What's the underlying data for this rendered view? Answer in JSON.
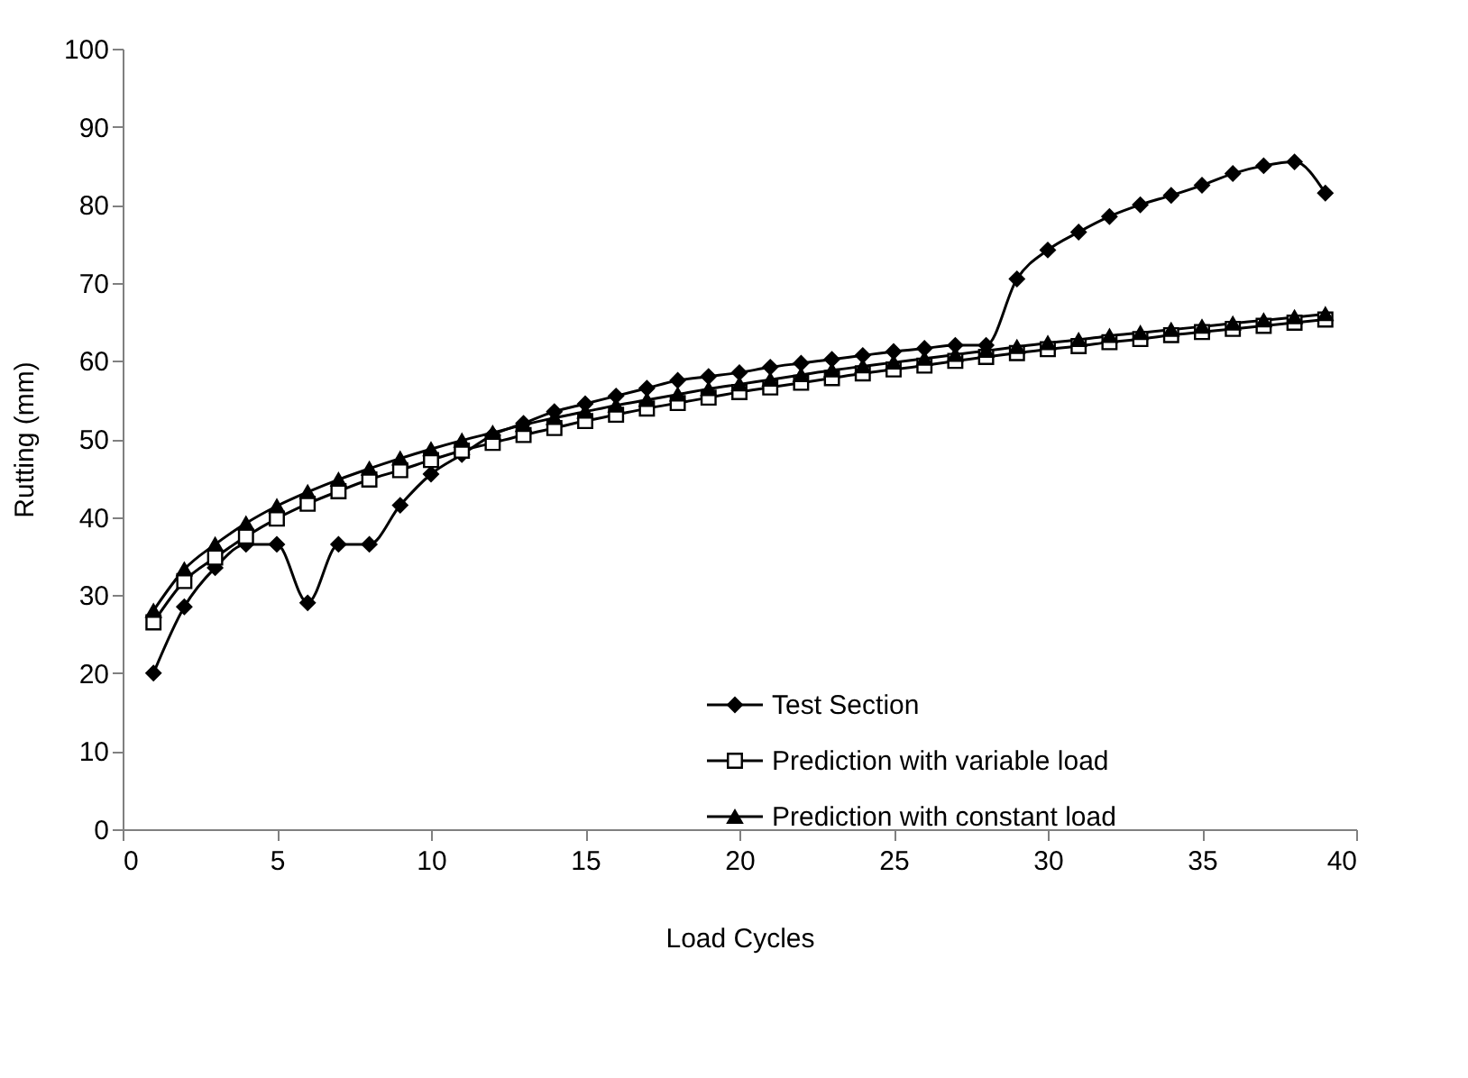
{
  "chart_data": {
    "type": "line",
    "xlabel": "Load Cycles",
    "ylabel": "Rutting (mm)",
    "x": [
      1,
      2,
      3,
      4,
      5,
      6,
      7,
      8,
      9,
      10,
      11,
      12,
      13,
      14,
      15,
      16,
      17,
      18,
      19,
      20,
      21,
      22,
      23,
      24,
      25,
      26,
      27,
      28,
      29,
      30,
      31,
      32,
      33,
      34,
      35,
      36,
      37,
      38,
      39
    ],
    "xlim": [
      0,
      40
    ],
    "xticks": [
      0,
      5,
      10,
      15,
      20,
      25,
      30,
      35,
      40
    ],
    "ylim": [
      0,
      100
    ],
    "yticks": [
      0,
      10,
      20,
      30,
      40,
      50,
      60,
      70,
      80,
      90,
      100
    ],
    "grid": false,
    "legend": "bottom right",
    "line_style": "solid",
    "series": [
      {
        "name": "Test Section",
        "color": "#000000",
        "marker": "diamond",
        "values": [
          20,
          28.5,
          33.5,
          36.5,
          36.5,
          29,
          36.5,
          36.5,
          41.5,
          45.5,
          48,
          50.5,
          52,
          53.5,
          54.5,
          55.5,
          56.5,
          57.5,
          58,
          58.5,
          59.2,
          59.7,
          60.2,
          60.7,
          61.2,
          61.6,
          62,
          62,
          70.5,
          74.2,
          76.5,
          78.5,
          80,
          81.2,
          82.5,
          84,
          85,
          85.5,
          81.5
        ]
      },
      {
        "name": "Prediction with variable load",
        "color": "#000000",
        "marker": "square",
        "values": [
          26.5,
          31.8,
          34.8,
          37.5,
          39.8,
          41.7,
          43.3,
          44.8,
          46,
          47.3,
          48.5,
          49.5,
          50.5,
          51.4,
          52.3,
          53.1,
          53.9,
          54.6,
          55.3,
          56,
          56.6,
          57.2,
          57.8,
          58.4,
          58.9,
          59.4,
          60,
          60.5,
          61,
          61.5,
          61.9,
          62.4,
          62.8,
          63.3,
          63.7,
          64.1,
          64.5,
          64.9,
          65.3
        ]
      },
      {
        "name": "Prediction with constant load",
        "color": "#000000",
        "marker": "triangle",
        "values": [
          28,
          33.3,
          36.5,
          39.2,
          41.4,
          43.2,
          44.8,
          46.2,
          47.5,
          48.7,
          49.8,
          50.8,
          51.8,
          52.7,
          53.5,
          54.3,
          55,
          55.7,
          56.4,
          57,
          57.6,
          58.2,
          58.8,
          59.3,
          59.8,
          60.3,
          60.8,
          61.3,
          61.8,
          62.3,
          62.7,
          63.2,
          63.6,
          64,
          64.4,
          64.8,
          65.2,
          65.6,
          66
        ]
      }
    ]
  }
}
